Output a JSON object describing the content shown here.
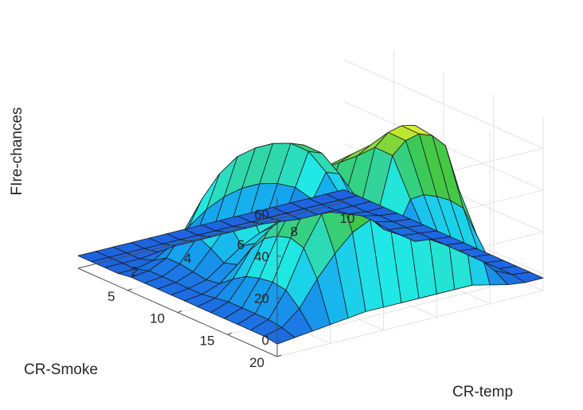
{
  "chart_data": {
    "type": "surface",
    "title": "",
    "xlabel": "CR-temp",
    "ylabel": "CR-Smoke",
    "zlabel": "FIre-chances",
    "xlim": [
      0,
      10
    ],
    "ylim": [
      0,
      20
    ],
    "zlim": [
      -8,
      75
    ],
    "x_ticks": [
      "2",
      "4",
      "6",
      "8",
      "10"
    ],
    "y_ticks": [
      "5",
      "10",
      "15",
      "20"
    ],
    "z_ticks": [
      "0",
      "20",
      "40",
      "60"
    ],
    "grid": true,
    "colormap": [
      "#1e64e0",
      "#15a8f0",
      "#20e8e6",
      "#30d6a4",
      "#40c648",
      "#a6e032",
      "#f7f732"
    ],
    "surface": {
      "x": [
        0,
        0.67,
        1.33,
        2,
        2.67,
        3.33,
        4,
        4.67,
        5.33,
        6,
        6.67,
        7.33,
        8,
        8.67,
        9.33,
        10
      ],
      "y": [
        0,
        1.33,
        2.67,
        4,
        5.33,
        6.67,
        8,
        9.33,
        10.67,
        12,
        13.33,
        14.67,
        16,
        17.33,
        18.67,
        20
      ],
      "z": [
        [
          -2,
          -2,
          -2,
          -2,
          -2,
          -2,
          -2,
          -2,
          -2,
          -2,
          -2,
          -2,
          -2,
          -2,
          -2,
          -2
        ],
        [
          -2,
          -2,
          -2,
          -2,
          -2,
          -2,
          -2,
          -2,
          -2,
          -2,
          -2,
          -2,
          -2,
          -2,
          -2,
          -2
        ],
        [
          -2,
          -2,
          -2,
          -1,
          0,
          0,
          0,
          0,
          0,
          0,
          -1,
          -2,
          -2,
          -2,
          -2,
          -2
        ],
        [
          -2,
          -2,
          0,
          5,
          12,
          18,
          22,
          24,
          24,
          22,
          18,
          10,
          2,
          -1,
          -2,
          -2
        ],
        [
          -1,
          0,
          4,
          15,
          28,
          38,
          44,
          46,
          46,
          44,
          38,
          26,
          10,
          1,
          -1,
          -2
        ],
        [
          -1,
          0,
          4,
          15,
          28,
          40,
          46,
          48,
          48,
          46,
          40,
          28,
          10,
          1,
          -1,
          -2
        ],
        [
          -1,
          0,
          3,
          12,
          22,
          30,
          34,
          36,
          36,
          34,
          30,
          22,
          8,
          0,
          -1,
          -2
        ],
        [
          -1,
          0,
          2,
          8,
          14,
          18,
          21,
          22,
          22,
          21,
          18,
          14,
          5,
          0,
          -1,
          -2
        ],
        [
          -1,
          0,
          3,
          10,
          18,
          24,
          28,
          30,
          30,
          28,
          25,
          20,
          8,
          0,
          -1,
          -2
        ],
        [
          -1,
          1,
          8,
          20,
          32,
          42,
          48,
          50,
          51,
          52,
          54,
          48,
          25,
          4,
          -1,
          -2
        ],
        [
          -1,
          2,
          12,
          28,
          42,
          50,
          54,
          56,
          58,
          60,
          64,
          58,
          30,
          5,
          -1,
          -2
        ],
        [
          -1,
          2,
          14,
          32,
          46,
          54,
          58,
          60,
          62,
          66,
          70,
          64,
          32,
          5,
          -1,
          -2
        ],
        [
          -1,
          2,
          15,
          34,
          48,
          56,
          60,
          62,
          64,
          68,
          73,
          66,
          33,
          5,
          -1,
          -2
        ],
        [
          -1,
          2,
          14,
          32,
          46,
          54,
          58,
          60,
          62,
          66,
          72,
          64,
          32,
          5,
          -1,
          -2
        ],
        [
          -1,
          1,
          8,
          20,
          30,
          38,
          42,
          44,
          45,
          48,
          52,
          46,
          22,
          3,
          -1,
          -2
        ],
        [
          -2,
          -1,
          0,
          1,
          2,
          3,
          3,
          3,
          3,
          3,
          3,
          3,
          1,
          -1,
          -2,
          -2
        ]
      ]
    }
  }
}
